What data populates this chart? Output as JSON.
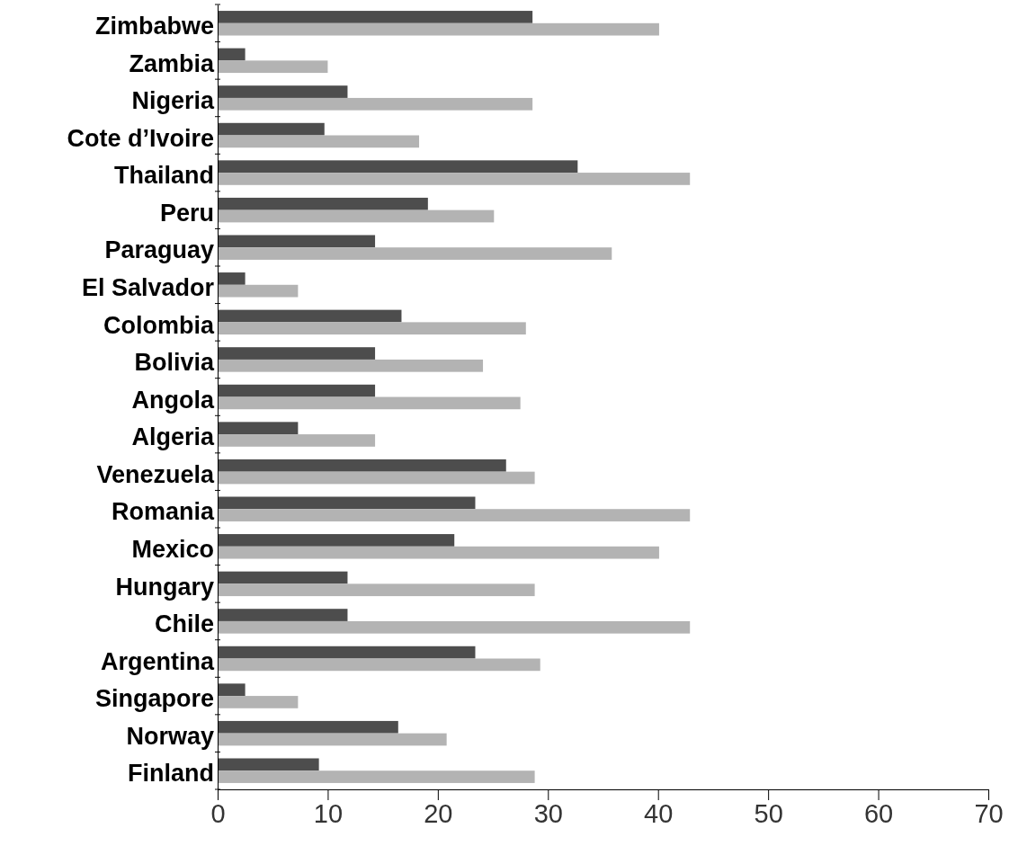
{
  "chart_data": {
    "type": "bar",
    "orientation": "horizontal",
    "categories": [
      "Zimbabwe",
      "Zambia",
      "Nigeria",
      "Cote d’Ivoire",
      "Thailand",
      "Peru",
      "Paraguay",
      "El Salvador",
      "Colombia",
      "Bolivia",
      "Angola",
      "Algeria",
      "Venezuela",
      "Romania",
      "Mexico",
      "Hungary",
      "Chile",
      "Argentina",
      "Singapore",
      "Norway",
      "Finland"
    ],
    "series": [
      {
        "color": "#4d4d4d",
        "values": [
          28.6,
          2.5,
          11.8,
          9.7,
          32.7,
          19.1,
          14.3,
          2.5,
          16.7,
          14.3,
          14.3,
          7.3,
          26.2,
          23.4,
          21.5,
          11.8,
          11.8,
          23.4,
          2.5,
          16.4,
          9.2
        ]
      },
      {
        "color": "#b3b3b3",
        "values": [
          40.1,
          10.0,
          28.6,
          18.3,
          42.9,
          25.1,
          35.8,
          7.3,
          28.0,
          24.1,
          27.5,
          14.3,
          28.8,
          42.9,
          40.1,
          28.8,
          42.9,
          29.3,
          7.3,
          20.8,
          28.8
        ]
      }
    ],
    "xlim": [
      0,
      70
    ],
    "xticks": [
      0,
      10,
      20,
      30,
      40,
      50,
      60,
      70
    ]
  }
}
